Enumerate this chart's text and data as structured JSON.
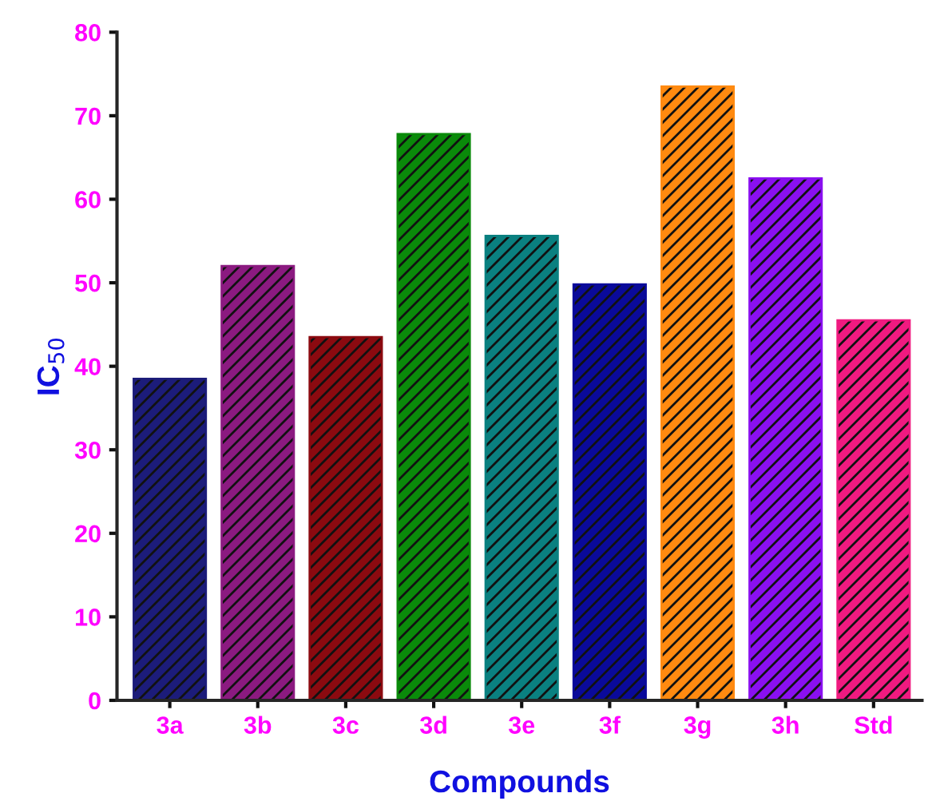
{
  "chart_data": {
    "type": "bar",
    "xlabel": "Compounds",
    "ylabel": "IC$_{50}$",
    "categories": [
      "3a",
      "3b",
      "3c",
      "3d",
      "3e",
      "3f",
      "3g",
      "3h",
      "Std"
    ],
    "values": [
      38.5,
      52,
      43.5,
      67.8,
      55.6,
      49.8,
      73.5,
      62.5,
      45.5
    ],
    "colors": [
      "#1c1c7a",
      "#8b1a80",
      "#8b0a10",
      "#0a8a0a",
      "#0a8080",
      "#0a0a9a",
      "#ff8a10",
      "#8a10f0",
      "#f01a80"
    ],
    "ylim": [
      0,
      80
    ],
    "yticks": [
      0,
      10,
      20,
      30,
      40,
      50,
      60,
      70,
      80
    ],
    "grid": false
  }
}
